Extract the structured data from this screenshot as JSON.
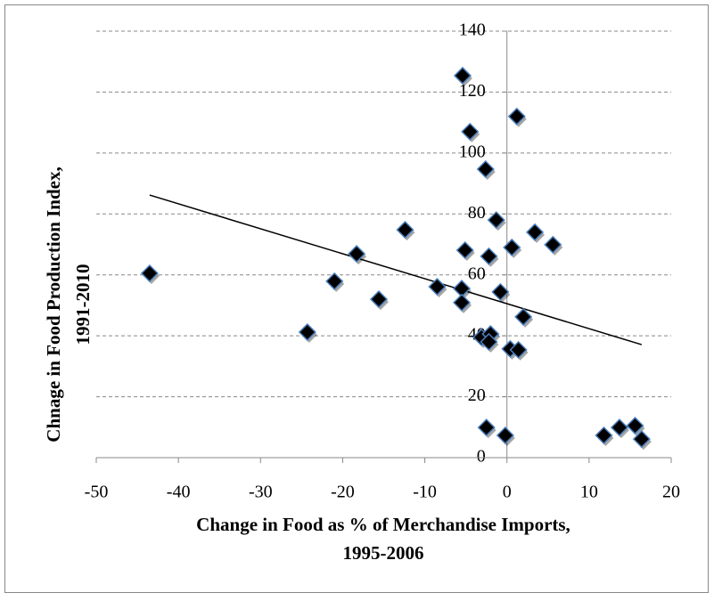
{
  "chart_data": {
    "type": "scatter",
    "xlabel": [
      "Change in Food as % of Merchandise Imports,",
      "1995-2006"
    ],
    "ylabel": [
      "Chnage in Food Production Index,",
      "1991-2010"
    ],
    "x": [
      -43.5,
      -24.3,
      -21.0,
      -18.3,
      -15.6,
      -12.4,
      -8.5,
      -5.4,
      -4.5,
      -2.6,
      1.2,
      -1.3,
      -5.1,
      -2.2,
      0.6,
      3.4,
      5.6,
      -5.5,
      -5.5,
      -0.8,
      2.0,
      -3.1,
      -2.0,
      -2.2,
      0.4,
      1.4,
      -2.5,
      -0.2,
      11.8,
      13.7,
      15.6,
      16.4
    ],
    "y": [
      60.5,
      41.2,
      57.9,
      66.9,
      52.0,
      74.8,
      56.1,
      125.4,
      107.0,
      94.7,
      112.0,
      78.0,
      68.1,
      66.1,
      69.0,
      74.0,
      69.9,
      55.5,
      50.9,
      54.4,
      46.2,
      39.5,
      40.6,
      38.0,
      35.7,
      35.4,
      9.9,
      7.3,
      7.3,
      9.9,
      10.5,
      6.1
    ],
    "color": "#000000",
    "edge_color": "#4a7ebb",
    "trendline": {
      "x": [
        -43.5,
        16.4
      ],
      "y": [
        86.2,
        37.1
      ],
      "color": "#000000"
    },
    "xlim": [
      -50,
      20
    ],
    "xticks": [
      -50,
      -40,
      -30,
      -20,
      -10,
      0,
      10,
      20
    ],
    "ylim": [
      0,
      140
    ],
    "yticks": [
      0,
      20,
      40,
      60,
      80,
      100,
      120,
      140
    ],
    "grid": true
  }
}
